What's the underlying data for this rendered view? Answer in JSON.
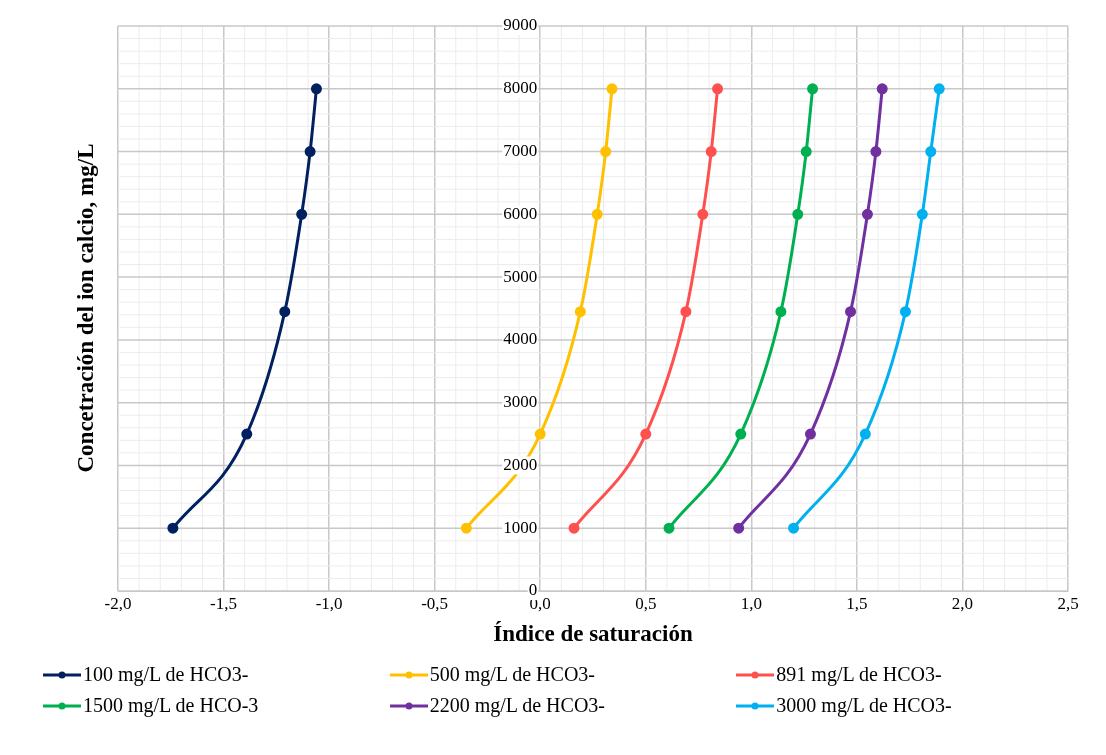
{
  "chart_data": {
    "type": "line",
    "xlabel": "Índice de saturación",
    "ylabel": "Concetración del ion calcio, mg/L",
    "xlim": [
      -2.0,
      2.5
    ],
    "xticks": [
      {
        "value": -2,
        "label": "-2,0"
      },
      {
        "value": -1.5,
        "label": "-1,5"
      },
      {
        "value": -1,
        "label": "-1,0"
      },
      {
        "value": -0.5,
        "label": "-0,5"
      },
      {
        "value": 0,
        "label": "0,0"
      },
      {
        "value": 0.5,
        "label": "0,5"
      },
      {
        "value": 1,
        "label": "1,0"
      },
      {
        "value": 1.5,
        "label": "1,5"
      },
      {
        "value": 2,
        "label": "2,0"
      },
      {
        "value": 2.5,
        "label": "2,5"
      }
    ],
    "ylim": [
      0,
      9000
    ],
    "yticks": [
      0,
      1000,
      2000,
      3000,
      4000,
      5000,
      6000,
      7000,
      8000,
      9000
    ],
    "grid": true,
    "legend": "bottom",
    "marker": "circle",
    "line_style": "solid",
    "series": [
      {
        "name": "100 mg/L de HCO3-",
        "color": "#002060",
        "x": [
          -1.74,
          -1.39,
          -1.21,
          -1.13,
          -1.09,
          -1.06
        ],
        "values": [
          1000,
          2500,
          4450,
          6000,
          7000,
          8000
        ]
      },
      {
        "name": "500 mg/L de HCO3-",
        "color": "#ffc000",
        "x": [
          -0.35,
          0.0,
          0.19,
          0.27,
          0.31,
          0.34
        ],
        "values": [
          1000,
          2500,
          4450,
          6000,
          7000,
          8000
        ]
      },
      {
        "name": "891 mg/L de HCO3-",
        "color": "#ff5050",
        "x": [
          0.16,
          0.5,
          0.69,
          0.77,
          0.81,
          0.84
        ],
        "values": [
          1000,
          2500,
          4450,
          6000,
          7000,
          8000
        ]
      },
      {
        "name": "1500 mg/L de HCO-3",
        "color": "#00b050",
        "x": [
          0.61,
          0.95,
          1.14,
          1.22,
          1.26,
          1.29
        ],
        "values": [
          1000,
          2500,
          4450,
          6000,
          7000,
          8000
        ]
      },
      {
        "name": "2200 mg/L de HCO3-",
        "color": "#7030a0",
        "x": [
          0.94,
          1.28,
          1.47,
          1.55,
          1.59,
          1.62
        ],
        "values": [
          1000,
          2500,
          4450,
          6000,
          7000,
          8000
        ]
      },
      {
        "name": "3000 mg/L de HCO3-",
        "color": "#00b0f0",
        "x": [
          1.2,
          1.54,
          1.73,
          1.81,
          1.85,
          1.89
        ],
        "values": [
          1000,
          2500,
          4450,
          6000,
          7000,
          8000
        ]
      }
    ]
  }
}
